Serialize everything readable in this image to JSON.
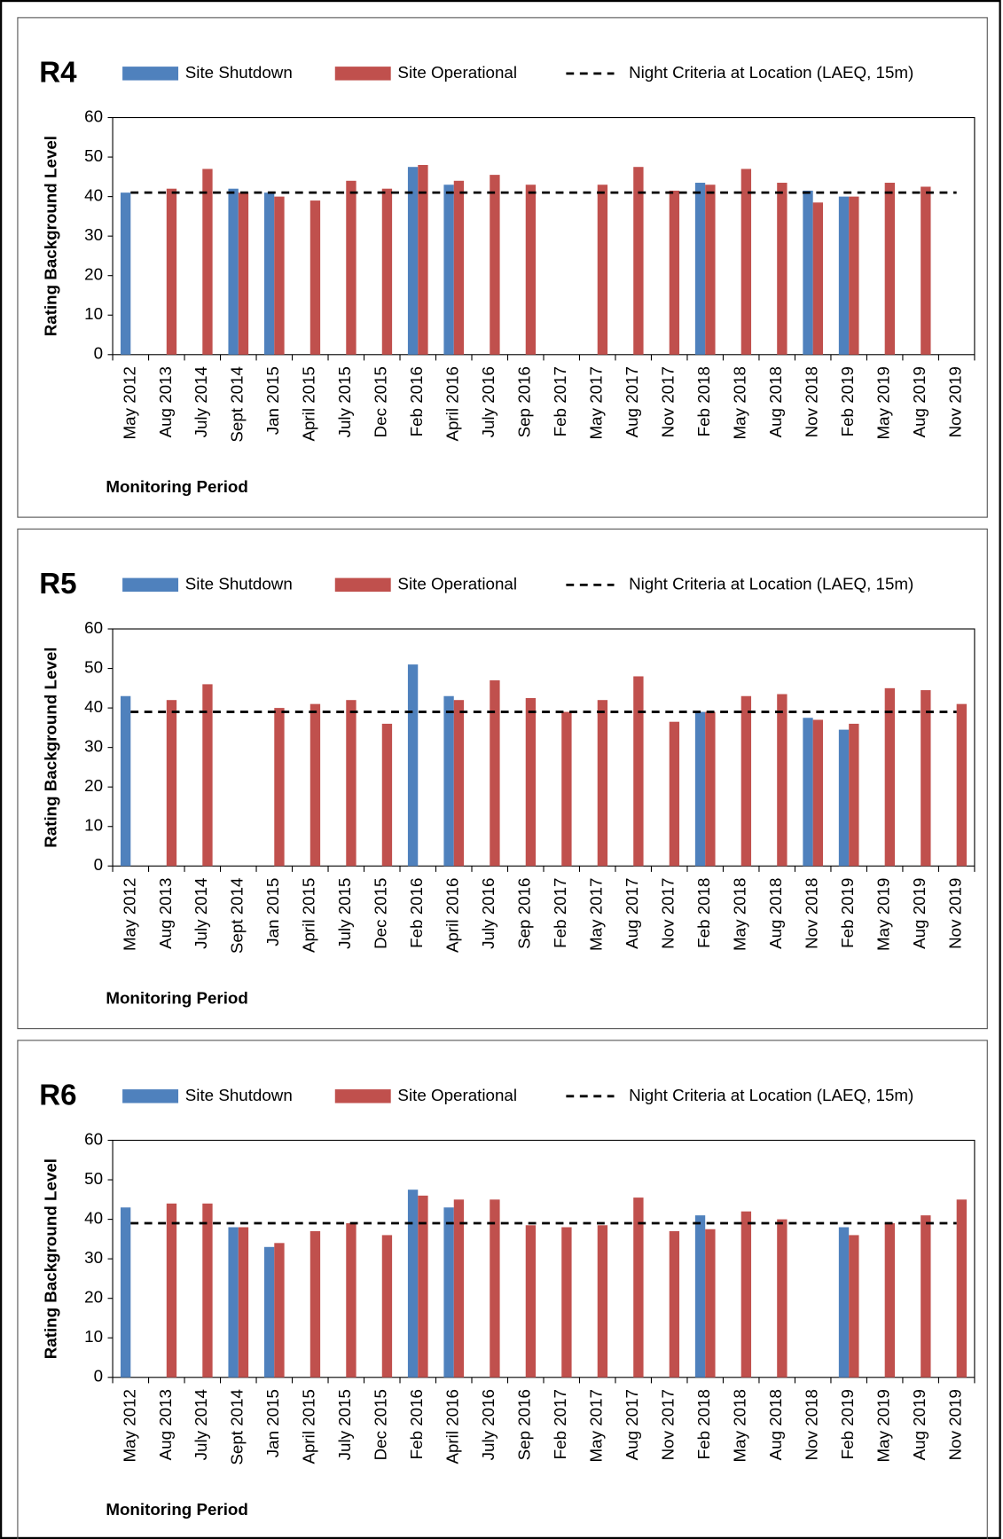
{
  "chart_data": [
    {
      "type": "bar",
      "title": "R4",
      "y_label": "Rating Background Level",
      "x_label": "Monitoring Period",
      "categories": [
        "May 2012",
        "Aug 2013",
        "July 2014",
        "Sept 2014",
        "Jan 2015",
        "April 2015",
        "July 2015",
        "Dec 2015",
        "Feb 2016",
        "April 2016",
        "July 2016",
        "Sep 2016",
        "Feb 2017",
        "May 2017",
        "Aug 2017",
        "Nov 2017",
        "Feb 2018",
        "May 2018",
        "Aug 2018",
        "Nov 2018",
        "Feb 2019",
        "May 2019",
        "Aug 2019",
        "Nov 2019"
      ],
      "series": [
        {
          "name": "Site Shutdown",
          "color": "#4f81bd",
          "values": [
            41,
            null,
            null,
            42,
            41,
            null,
            null,
            null,
            47.5,
            43,
            null,
            null,
            null,
            null,
            null,
            null,
            43.5,
            null,
            null,
            41.5,
            40,
            null,
            null,
            null
          ]
        },
        {
          "name": "Site Operational",
          "color": "#c0504d",
          "values": [
            null,
            42,
            47,
            41,
            40,
            39,
            44,
            42,
            48,
            44,
            45.5,
            43,
            null,
            43,
            47.5,
            41.5,
            43,
            47,
            43.5,
            38.5,
            40,
            43.5,
            42.5,
            null
          ]
        }
      ],
      "reference_line": {
        "name": "Night Criteria at Location (LAEQ, 15m)",
        "value": 41,
        "color": "#000000"
      },
      "ylim": [
        0,
        60
      ],
      "yticks": [
        0,
        10,
        20,
        30,
        40,
        50,
        60
      ]
    },
    {
      "type": "bar",
      "title": "R5",
      "y_label": "Rating Background Level",
      "x_label": "Monitoring Period",
      "categories": [
        "May 2012",
        "Aug 2013",
        "July 2014",
        "Sept 2014",
        "Jan 2015",
        "April 2015",
        "July 2015",
        "Dec 2015",
        "Feb 2016",
        "April 2016",
        "July 2016",
        "Sep 2016",
        "Feb 2017",
        "May 2017",
        "Aug 2017",
        "Nov 2017",
        "Feb 2018",
        "May 2018",
        "Aug 2018",
        "Nov 2018",
        "Feb 2019",
        "May 2019",
        "Aug 2019",
        "Nov 2019"
      ],
      "series": [
        {
          "name": "Site Shutdown",
          "color": "#4f81bd",
          "values": [
            43,
            null,
            null,
            null,
            null,
            null,
            null,
            null,
            51,
            43,
            null,
            null,
            null,
            null,
            null,
            null,
            39,
            null,
            null,
            37.5,
            34.5,
            null,
            null,
            null
          ]
        },
        {
          "name": "Site Operational",
          "color": "#c0504d",
          "values": [
            null,
            42,
            46,
            null,
            40,
            41,
            42,
            36,
            null,
            42,
            47,
            42.5,
            39,
            42,
            48,
            36.5,
            39,
            43,
            43.5,
            37,
            36,
            45,
            44.5,
            41
          ]
        }
      ],
      "reference_line": {
        "name": "Night Criteria at Location (LAEQ, 15m)",
        "value": 39,
        "color": "#000000"
      },
      "ylim": [
        0,
        60
      ],
      "yticks": [
        0,
        10,
        20,
        30,
        40,
        50,
        60
      ]
    },
    {
      "type": "bar",
      "title": "R6",
      "y_label": "Rating Background Level",
      "x_label": "Monitoring Period",
      "categories": [
        "May 2012",
        "Aug 2013",
        "July 2014",
        "Sept 2014",
        "Jan 2015",
        "April 2015",
        "July 2015",
        "Dec 2015",
        "Feb 2016",
        "April 2016",
        "July 2016",
        "Sep 2016",
        "Feb 2017",
        "May 2017",
        "Aug 2017",
        "Nov 2017",
        "Feb 2018",
        "May 2018",
        "Aug 2018",
        "Nov 2018",
        "Feb 2019",
        "May 2019",
        "Aug 2019",
        "Nov 2019"
      ],
      "series": [
        {
          "name": "Site Shutdown",
          "color": "#4f81bd",
          "values": [
            43,
            null,
            null,
            38,
            33,
            null,
            null,
            null,
            47.5,
            43,
            null,
            null,
            null,
            null,
            null,
            null,
            41,
            null,
            null,
            null,
            38,
            null,
            null,
            null
          ]
        },
        {
          "name": "Site Operational",
          "color": "#c0504d",
          "values": [
            null,
            44,
            44,
            38,
            34,
            37,
            39,
            36,
            46,
            45,
            45,
            38.5,
            38,
            38.5,
            45.5,
            37,
            37.5,
            42,
            40,
            null,
            36,
            39,
            41,
            45
          ]
        }
      ],
      "reference_line": {
        "name": "Night Criteria at Location (LAEQ, 15m)",
        "value": 39,
        "color": "#000000"
      },
      "ylim": [
        0,
        60
      ],
      "yticks": [
        0,
        10,
        20,
        30,
        40,
        50,
        60
      ]
    }
  ]
}
